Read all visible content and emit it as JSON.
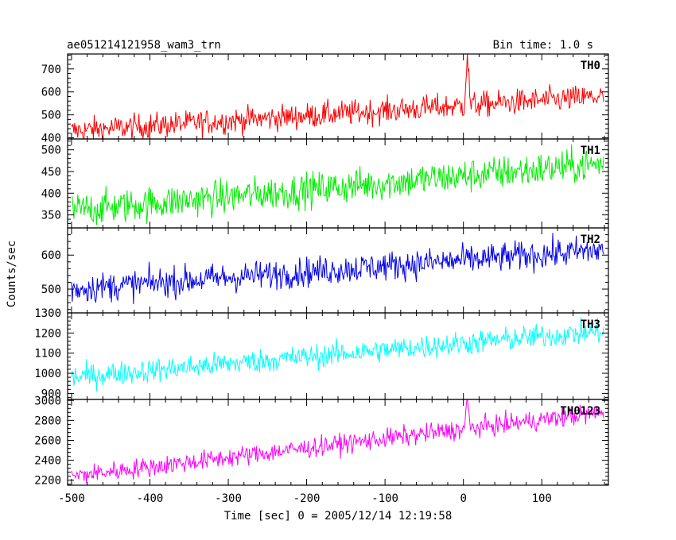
{
  "header": {
    "left_title": "ae051214121958_wam3_trn",
    "right_title": "Bin time: 1.0 s"
  },
  "chart_data": {
    "type": "line",
    "xlabel": "Time [sec] 0 = 2005/12/14 12:19:58",
    "ylabel": "Counts/sec",
    "xlim": [
      -505,
      185
    ],
    "xticks": [
      -500,
      -400,
      -300,
      -200,
      -100,
      0,
      100
    ],
    "x_start": -500,
    "x_end": 179,
    "bin_time": 1.0,
    "panels": [
      {
        "name": "TH0",
        "color": "#ff0000",
        "ylim": [
          395,
          765
        ],
        "yticks": [
          400,
          500,
          600,
          700
        ],
        "trend_start": 430,
        "trend_end": 580,
        "noise": 28,
        "burst": {
          "x": 5,
          "peak": 765
        }
      },
      {
        "name": "TH1",
        "color": "#00ee00",
        "ylim": [
          320,
          525
        ],
        "yticks": [
          350,
          400,
          450,
          500
        ],
        "trend_start": 360,
        "trend_end": 468,
        "noise": 20,
        "burst": null
      },
      {
        "name": "TH2",
        "color": "#0000ee",
        "ylim": [
          430,
          680
        ],
        "yticks": [
          500,
          600
        ],
        "trend_start": 500,
        "trend_end": 615,
        "noise": 22,
        "burst": null
      },
      {
        "name": "TH3",
        "color": "#00ffff",
        "ylim": [
          870,
          1300
        ],
        "yticks": [
          900,
          1000,
          1100,
          1200,
          1300
        ],
        "trend_start": 980,
        "trend_end": 1210,
        "noise": 30,
        "burst": null
      },
      {
        "name": "TH0123",
        "color": "#ff00ff",
        "ylim": [
          2150,
          3010
        ],
        "yticks": [
          2200,
          2400,
          2600,
          2800,
          3000
        ],
        "trend_start": 2240,
        "trend_end": 2880,
        "noise": 50,
        "burst": {
          "x": 5,
          "peak": 3000
        }
      }
    ]
  }
}
